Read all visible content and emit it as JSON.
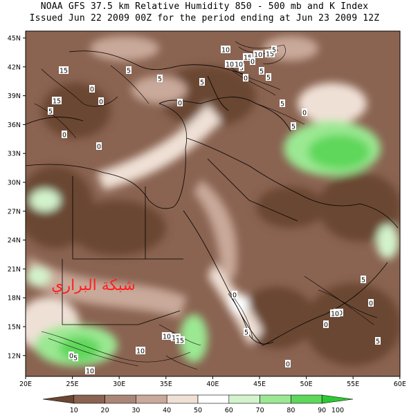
{
  "header": {
    "line1": "NOAA GFS 37.5 km Relative Humidity 850 - 500 mb and K Index",
    "line2": "Issued Jun 22 2009 00Z for the period ending at Jun 23 2009 12Z"
  },
  "watermark": "شبكة البراري",
  "axes": {
    "lat_labels": [
      "45N",
      "42N",
      "39N",
      "36N",
      "33N",
      "30N",
      "27N",
      "24N",
      "21N",
      "18N",
      "15N",
      "12N"
    ],
    "lon_labels": [
      "20E",
      "25E",
      "30E",
      "35E",
      "40E",
      "45E",
      "50E",
      "55E",
      "60E"
    ]
  },
  "colorbar": {
    "labels": [
      "10",
      "20",
      "30",
      "40",
      "50",
      "60",
      "70",
      "80",
      "90",
      "100"
    ],
    "colors": [
      "#6b4632",
      "#8a6351",
      "#a98676",
      "#c9a99a",
      "#efe0d5",
      "#ffffff",
      "#d3f3cc",
      "#9be893",
      "#5fd75a",
      "#2ec834"
    ]
  },
  "contour_labels": [
    "10",
    "10",
    "15",
    "5",
    "15",
    "5",
    "0",
    "5",
    "0",
    "5",
    "10",
    "10",
    "15",
    "0",
    "5",
    "5",
    "5",
    "0",
    "0",
    "0",
    "15",
    "5",
    "0",
    "5",
    "0",
    "5",
    "0",
    "10",
    "5",
    "10",
    "15",
    "10",
    "15",
    "10",
    "5",
    "0",
    "5",
    "0",
    "5",
    "0",
    "10",
    "0"
  ]
}
